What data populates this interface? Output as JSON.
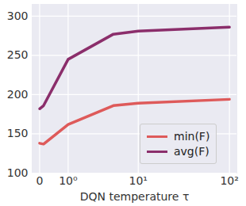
{
  "chart_data": {
    "type": "line",
    "x_label": "DQN temperature τ",
    "log": "x",
    "xlim": [
      -0.2,
      120
    ],
    "xticks": [
      0,
      {
        "value": 1,
        "label": "10⁰"
      },
      {
        "value": 10,
        "label": "10¹"
      },
      {
        "value": 100,
        "label": "10²"
      }
    ],
    "ylim": [
      100,
      315
    ],
    "yticks": [
      100,
      150,
      200,
      250,
      300
    ],
    "grid": true,
    "legend": "lower right",
    "x": [
      0,
      0.1,
      1,
      5,
      10,
      100
    ],
    "series": [
      {
        "name": "min(F)",
        "color": "#de5a5a",
        "values": [
          138,
          137,
          162,
          186,
          189,
          194
        ]
      },
      {
        "name": "avg(F)",
        "color": "#8b2e6b",
        "values": [
          182,
          186,
          245,
          277,
          281,
          286
        ]
      }
    ]
  }
}
